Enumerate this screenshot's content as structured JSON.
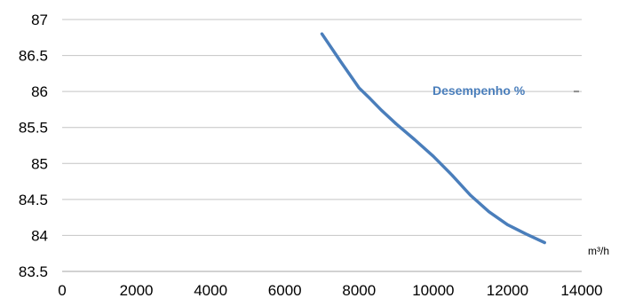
{
  "chart_data": {
    "type": "line",
    "title": "",
    "xlabel": "m³/h",
    "ylabel": "",
    "xlim": [
      0,
      14000
    ],
    "ylim": [
      83.5,
      87
    ],
    "x_ticks": [
      0,
      2000,
      4000,
      6000,
      8000,
      10000,
      12000,
      14000
    ],
    "y_ticks": [
      83.5,
      84,
      84.5,
      85,
      85.5,
      86,
      86.5,
      87
    ],
    "y_tick_labels": [
      "83.5",
      "84",
      "84.5",
      "85",
      "85.5",
      "86",
      "86.5",
      "87"
    ],
    "grid": "horizontal",
    "legend": "right",
    "series": [
      {
        "name": "Desempenho %",
        "color": "#4a7ebb",
        "x": [
          7000,
          7500,
          8000,
          8300,
          8600,
          9000,
          9500,
          10000,
          10500,
          11000,
          11500,
          12000,
          12500,
          13000
        ],
        "y": [
          86.8,
          86.42,
          86.05,
          85.9,
          85.74,
          85.55,
          85.33,
          85.1,
          84.84,
          84.56,
          84.33,
          84.15,
          84.02,
          83.9
        ]
      }
    ]
  }
}
